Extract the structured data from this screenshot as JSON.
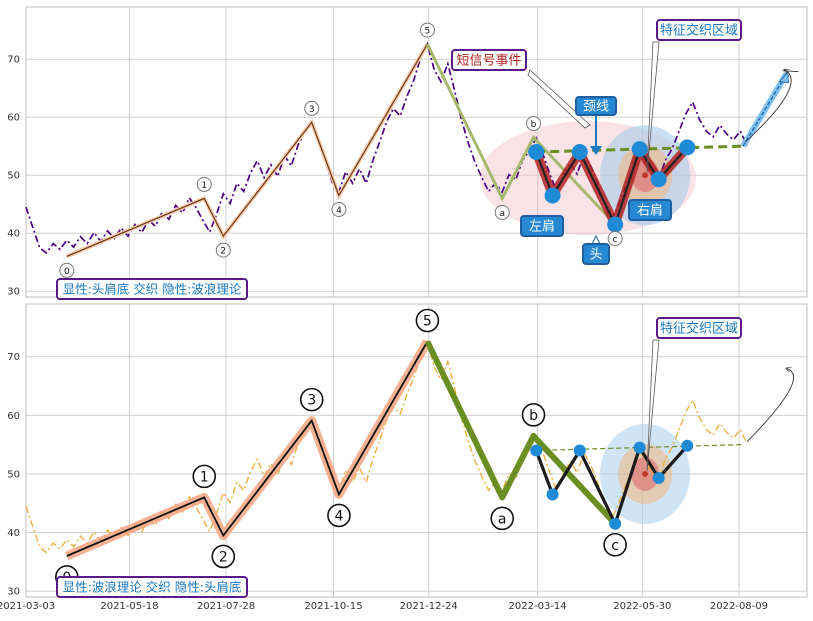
{
  "chart_data": {
    "type": "line",
    "x_ticks": [
      "2021-03-03",
      "2021-05-18",
      "2021-07-28",
      "2021-10-15",
      "2021-12-24",
      "2022-03-14",
      "2022-05-30",
      "2022-08-09"
    ],
    "y_ticks": [
      30,
      40,
      50,
      60,
      70
    ],
    "ylim": [
      29,
      79
    ],
    "xlim": [
      "2021-03-03",
      "2022-09-28"
    ],
    "grid": true,
    "series": [
      {
        "values": [
          [
            "2021-03-03",
            44.5
          ],
          [
            "2021-03-08",
            41
          ],
          [
            "2021-03-13",
            37.5
          ],
          [
            "2021-03-18",
            36.6
          ],
          [
            "2021-03-23",
            38.2
          ],
          [
            "2021-03-28",
            37.2
          ],
          [
            "2021-04-02",
            38.8
          ],
          [
            "2021-04-07",
            37.6
          ],
          [
            "2021-04-12",
            39.4
          ],
          [
            "2021-04-17",
            38.2
          ],
          [
            "2021-04-22",
            40.1
          ],
          [
            "2021-04-27",
            38.6
          ],
          [
            "2021-05-02",
            40.4
          ],
          [
            "2021-05-07",
            39.1
          ],
          [
            "2021-05-12",
            40.9
          ],
          [
            "2021-05-17",
            39.5
          ],
          [
            "2021-05-22",
            41.5
          ],
          [
            "2021-05-27",
            40.1
          ],
          [
            "2021-06-01",
            42.3
          ],
          [
            "2021-06-06",
            41.2
          ],
          [
            "2021-06-11",
            43.6
          ],
          [
            "2021-06-16",
            42.4
          ],
          [
            "2021-06-21",
            44.8
          ],
          [
            "2021-06-26",
            43.5
          ],
          [
            "2021-07-01",
            46.1
          ],
          [
            "2021-07-06",
            44.4
          ],
          [
            "2021-07-11",
            42.2
          ],
          [
            "2021-07-16",
            40.2
          ],
          [
            "2021-07-21",
            43.2
          ],
          [
            "2021-07-26",
            46.8
          ],
          [
            "2021-07-31",
            45.1
          ],
          [
            "2021-08-05",
            48.6
          ],
          [
            "2021-08-10",
            47.2
          ],
          [
            "2021-08-15",
            50.4
          ],
          [
            "2021-08-20",
            52.5
          ],
          [
            "2021-08-25",
            49.6
          ],
          [
            "2021-08-30",
            51.8
          ],
          [
            "2021-09-04",
            49.8
          ],
          [
            "2021-09-09",
            53.4
          ],
          [
            "2021-09-14",
            51.6
          ],
          [
            "2021-09-19",
            55.2
          ],
          [
            "2021-09-24",
            57.6
          ],
          [
            "2021-09-29",
            59.1
          ],
          [
            "2021-10-04",
            56.1
          ],
          [
            "2021-10-09",
            52.4
          ],
          [
            "2021-10-14",
            48.8
          ],
          [
            "2021-10-19",
            47.1
          ],
          [
            "2021-10-24",
            50.6
          ],
          [
            "2021-10-29",
            48.6
          ],
          [
            "2021-11-03",
            51.1
          ],
          [
            "2021-11-08",
            48.6
          ],
          [
            "2021-11-13",
            52.6
          ],
          [
            "2021-11-18",
            55.8
          ],
          [
            "2021-11-23",
            59.2
          ],
          [
            "2021-11-28",
            61.5
          ],
          [
            "2021-12-03",
            60.2
          ],
          [
            "2021-12-08",
            63.6
          ],
          [
            "2021-12-13",
            66.4
          ],
          [
            "2021-12-18",
            70.2
          ],
          [
            "2021-12-23",
            72.6
          ],
          [
            "2021-12-28",
            68.2
          ],
          [
            "2022-01-02",
            66.1
          ],
          [
            "2022-01-07",
            69.2
          ],
          [
            "2022-01-12",
            64.6
          ],
          [
            "2022-01-17",
            59.6
          ],
          [
            "2022-01-22",
            55.6
          ],
          [
            "2022-01-27",
            52.2
          ],
          [
            "2022-02-01",
            49.6
          ],
          [
            "2022-02-06",
            47.2
          ],
          [
            "2022-02-11",
            48.6
          ],
          [
            "2022-02-16",
            47.1
          ],
          [
            "2022-02-21",
            50.1
          ],
          [
            "2022-02-26",
            49.2
          ],
          [
            "2022-03-03",
            52.6
          ],
          [
            "2022-03-08",
            54.2
          ],
          [
            "2022-03-13",
            56.4
          ],
          [
            "2022-03-18",
            53.6
          ],
          [
            "2022-03-23",
            50.2
          ],
          [
            "2022-03-28",
            47.2
          ],
          [
            "2022-04-02",
            50.1
          ],
          [
            "2022-04-07",
            52.1
          ],
          [
            "2022-04-12",
            50.2
          ],
          [
            "2022-04-17",
            53.6
          ],
          [
            "2022-04-22",
            51.6
          ],
          [
            "2022-04-27",
            48.6
          ],
          [
            "2022-05-02",
            45.2
          ],
          [
            "2022-05-07",
            42.2
          ],
          [
            "2022-05-12",
            44.6
          ],
          [
            "2022-05-17",
            47.6
          ],
          [
            "2022-05-22",
            50.6
          ],
          [
            "2022-05-27",
            54.2
          ],
          [
            "2022-06-01",
            52.6
          ],
          [
            "2022-06-06",
            50.2
          ],
          [
            "2022-06-11",
            49.3
          ],
          [
            "2022-06-16",
            52.6
          ],
          [
            "2022-06-21",
            54.6
          ],
          [
            "2022-06-26",
            57.6
          ],
          [
            "2022-07-01",
            60.6
          ],
          [
            "2022-07-06",
            62.6
          ],
          [
            "2022-07-11",
            59.6
          ],
          [
            "2022-07-16",
            57.6
          ],
          [
            "2022-07-21",
            56.6
          ],
          [
            "2022-07-26",
            58.6
          ],
          [
            "2022-07-31",
            57.1
          ],
          [
            "2022-08-05",
            56.1
          ],
          [
            "2022-08-10",
            57.6
          ],
          [
            "2022-08-15",
            55.1
          ]
        ]
      }
    ],
    "panels": [
      {
        "annotation": "显性:头肩底 交织 隐性:波浪理论",
        "price_color": "#4b0082",
        "wave_style": "thin",
        "pattern_style": "bold",
        "callouts": {
          "short_signal": "短信号事件",
          "feature_zone": "特征交织区域",
          "neckline": "颈线",
          "left_shoulder": "左肩",
          "head": "头",
          "right_shoulder": "右肩"
        }
      },
      {
        "annotation": "显性:波浪理论 交织 隐性:头肩底",
        "price_color": "#e8b040",
        "wave_style": "bold",
        "pattern_style": "thin",
        "callouts": {
          "feature_zone": "特征交织区域"
        }
      }
    ],
    "wave_points": [
      {
        "label": "0",
        "x": "2021-04-02",
        "y": 36.0
      },
      {
        "label": "1",
        "x": "2021-07-12",
        "y": 46.0
      },
      {
        "label": "2",
        "x": "2021-07-26",
        "y": 39.5
      },
      {
        "label": "3",
        "x": "2021-09-29",
        "y": 59.1
      },
      {
        "label": "4",
        "x": "2021-10-19",
        "y": 46.5
      },
      {
        "label": "5",
        "x": "2021-12-23",
        "y": 72.6
      },
      {
        "label": "a",
        "x": "2022-02-16",
        "y": 46.0
      },
      {
        "label": "b",
        "x": "2022-03-11",
        "y": 56.5
      },
      {
        "label": "c",
        "x": "2022-05-10",
        "y": 41.5
      }
    ],
    "pattern_points": [
      {
        "x": "2022-03-13",
        "y": 54.0
      },
      {
        "x": "2022-03-25",
        "y": 46.5
      },
      {
        "x": "2022-04-14",
        "y": 54.0
      },
      {
        "x": "2022-05-10",
        "y": 41.5
      },
      {
        "x": "2022-05-28",
        "y": 54.5
      },
      {
        "x": "2022-06-11",
        "y": 49.3
      },
      {
        "x": "2022-07-02",
        "y": 54.8
      }
    ],
    "neckline": [
      [
        "2022-03-13",
        54.0
      ],
      [
        "2022-08-12",
        55.0
      ]
    ]
  },
  "colors": {
    "price_dark": "#4b0082",
    "price_light": "#e8b040",
    "wave_thin": "#a0522d",
    "wave_band": "#f4a57f",
    "corrective": "#6b8e23",
    "corrective_light": "#a6b86e",
    "pattern_band": "#b22222",
    "marker": "#1f8ad6",
    "neckline": "#6b8e23",
    "label_border": "#5b1a8a",
    "label_text": "#1a78c2"
  }
}
